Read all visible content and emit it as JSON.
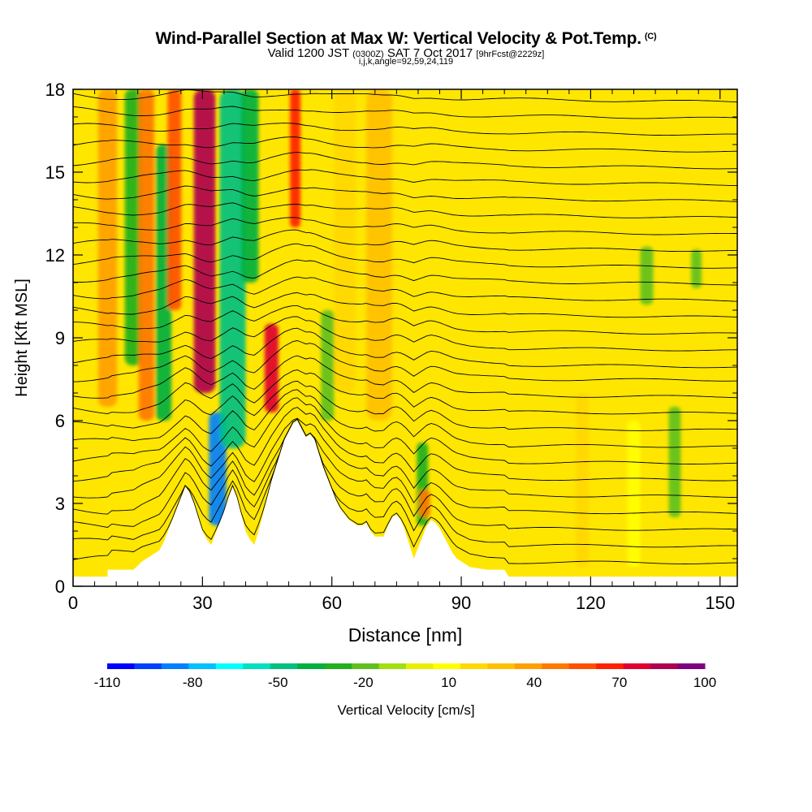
{
  "header": {
    "title": "Wind-Parallel Section at Max W: Vertical Velocity & Pot.Temp.",
    "title_tag": "(C)",
    "valid_prefix": "Valid 1200 JST",
    "valid_utc": "(0300Z)",
    "valid_date": "SAT 7 Oct 2017",
    "forecast": "[9hrFcst@2229z]",
    "indices": "i,j,k,angle=92,59,24,119"
  },
  "chart_data": {
    "type": "heatmap",
    "xlabel": "Distance [nm]",
    "ylabel": "Height [Kft MSL]",
    "xlim": [
      0,
      154
    ],
    "ylim": [
      0,
      18
    ],
    "x_ticks": [
      0,
      30,
      60,
      90,
      120,
      150
    ],
    "x_tick_labels": [
      "0",
      "30",
      "60",
      "90",
      "120",
      "150"
    ],
    "y_ticks": [
      0,
      3,
      6,
      9,
      12,
      15,
      18
    ],
    "y_tick_labels": [
      "0",
      "3",
      "6",
      "9",
      "12",
      "15",
      "18"
    ],
    "colorbar": {
      "label": "Vertical Velocity [cm/s]",
      "tick_labels": [
        "-110",
        "-80",
        "-50",
        "-20",
        "10",
        "40",
        "70",
        "100"
      ],
      "tick_values": [
        -110,
        -80,
        -50,
        -20,
        10,
        40,
        70,
        100
      ],
      "bins": [
        -110,
        -100,
        -90,
        -80,
        -70,
        -60,
        -50,
        -40,
        -30,
        -20,
        -10,
        0,
        10,
        20,
        30,
        40,
        50,
        60,
        70,
        80,
        90,
        100
      ],
      "colors": [
        "#0000ff",
        "#0040ff",
        "#0080ff",
        "#00c0ff",
        "#00ffff",
        "#00e0c0",
        "#00c080",
        "#00b040",
        "#20b020",
        "#60c020",
        "#a0e010",
        "#e8f000",
        "#ffff00",
        "#ffd800",
        "#ffc000",
        "#ffa000",
        "#ff7800",
        "#ff5000",
        "#ff2000",
        "#e00030",
        "#b00050",
        "#800080"
      ]
    },
    "terrain": [
      [
        0,
        0.35
      ],
      [
        8,
        0.35
      ],
      [
        8,
        0.6
      ],
      [
        14,
        0.6
      ],
      [
        16,
        0.9
      ],
      [
        18,
        1.1
      ],
      [
        20,
        1.3
      ],
      [
        21,
        1.6
      ],
      [
        22,
        2.0
      ],
      [
        23,
        2.4
      ],
      [
        24,
        2.8
      ],
      [
        25,
        3.2
      ],
      [
        26,
        3.6
      ],
      [
        27,
        3.4
      ],
      [
        28,
        3.0
      ],
      [
        29,
        2.5
      ],
      [
        30,
        2.0
      ],
      [
        31,
        1.7
      ],
      [
        32,
        1.5
      ],
      [
        33,
        1.9
      ],
      [
        34,
        2.3
      ],
      [
        35,
        2.7
      ],
      [
        36,
        3.2
      ],
      [
        37,
        3.6
      ],
      [
        38,
        3.2
      ],
      [
        39,
        2.6
      ],
      [
        40,
        2.0
      ],
      [
        41,
        1.7
      ],
      [
        42,
        1.5
      ],
      [
        43,
        2.0
      ],
      [
        44,
        2.6
      ],
      [
        45,
        3.2
      ],
      [
        46,
        3.8
      ],
      [
        47,
        4.3
      ],
      [
        48,
        4.8
      ],
      [
        49,
        5.3
      ],
      [
        50,
        5.6
      ],
      [
        51,
        5.9
      ],
      [
        52,
        6.0
      ],
      [
        53,
        5.7
      ],
      [
        54,
        5.4
      ],
      [
        55,
        5.5
      ],
      [
        56,
        5.3
      ],
      [
        57,
        4.8
      ],
      [
        58,
        4.3
      ],
      [
        59,
        3.9
      ],
      [
        60,
        3.5
      ],
      [
        61,
        3.1
      ],
      [
        62,
        2.8
      ],
      [
        63,
        2.6
      ],
      [
        64,
        2.4
      ],
      [
        65,
        2.3
      ],
      [
        66,
        2.2
      ],
      [
        67,
        2.2
      ],
      [
        68,
        2.3
      ],
      [
        69,
        2.0
      ],
      [
        70,
        1.8
      ],
      [
        72,
        1.8
      ],
      [
        73,
        2.2
      ],
      [
        74,
        2.5
      ],
      [
        75,
        2.6
      ],
      [
        76,
        2.4
      ],
      [
        77,
        2.0
      ],
      [
        78,
        1.5
      ],
      [
        79,
        1.0
      ],
      [
        80,
        1.4
      ],
      [
        81,
        1.8
      ],
      [
        82,
        2.2
      ],
      [
        83,
        2.4
      ],
      [
        84,
        2.3
      ],
      [
        85,
        2.1
      ],
      [
        86,
        1.8
      ],
      [
        87,
        1.5
      ],
      [
        88,
        1.2
      ],
      [
        89,
        1.0
      ],
      [
        90,
        0.9
      ],
      [
        92,
        0.7
      ],
      [
        96,
        0.6
      ],
      [
        100,
        0.6
      ],
      [
        101,
        0.35
      ],
      [
        154,
        0.35
      ]
    ],
    "plumes": [
      {
        "x": 8,
        "w": 2.2,
        "z0": 6.5,
        "z1": 18,
        "w_cms": 40
      },
      {
        "x": 14,
        "w": 2.0,
        "z0": 8,
        "z1": 18,
        "w_cms": -30
      },
      {
        "x": 17,
        "w": 1.8,
        "z0": 6,
        "z1": 18,
        "w_cms": 50
      },
      {
        "x": 21,
        "w": 1.8,
        "z0": 6,
        "z1": 16,
        "w_cms": -40
      },
      {
        "x": 23.5,
        "w": 1.6,
        "z0": 10,
        "z1": 18,
        "w_cms": 60
      },
      {
        "x": 30.5,
        "w": 2.5,
        "z0": 7,
        "z1": 18,
        "w_cms": 90
      },
      {
        "x": 33.5,
        "w": 2.0,
        "z0": 2.2,
        "z1": 6.3,
        "w_cms": -90
      },
      {
        "x": 37,
        "w": 3.0,
        "z0": 5,
        "z1": 18,
        "w_cms": -50
      },
      {
        "x": 41,
        "w": 2.0,
        "z0": 11,
        "z1": 18,
        "w_cms": -40
      },
      {
        "x": 46,
        "w": 1.6,
        "z0": 6.3,
        "z1": 9.5,
        "w_cms": 80
      },
      {
        "x": 51.5,
        "w": 1.2,
        "z0": 13,
        "z1": 18,
        "w_cms": 70
      },
      {
        "x": 59,
        "w": 1.5,
        "z0": 6,
        "z1": 10,
        "w_cms": -20
      },
      {
        "x": 63,
        "w": 2.5,
        "z0": 7,
        "z1": 18,
        "w_cms": 20
      },
      {
        "x": 71,
        "w": 3.0,
        "z0": 6,
        "z1": 18,
        "w_cms": 30
      },
      {
        "x": 81,
        "w": 1.3,
        "z0": 2.2,
        "z1": 5.2,
        "w_cms": -25
      },
      {
        "x": 81.5,
        "w": 1.3,
        "z0": 2.5,
        "z1": 3.5,
        "w_cms": 50
      },
      {
        "x": 118,
        "w": 1.5,
        "z0": 0.7,
        "z1": 7,
        "w_cms": 20
      },
      {
        "x": 130,
        "w": 1.5,
        "z0": 0.7,
        "z1": 6,
        "w_cms": 15
      },
      {
        "x": 133,
        "w": 1.5,
        "z0": 10.2,
        "z1": 12.3,
        "w_cms": -20
      },
      {
        "x": 139.5,
        "w": 1.4,
        "z0": 2.5,
        "z1": 6.5,
        "w_cms": -20
      },
      {
        "x": 144.5,
        "w": 1.2,
        "z0": 10.8,
        "z1": 12.2,
        "w_cms": -20
      }
    ],
    "isentrope_levels": [
      1.0,
      1.6,
      2.2,
      2.8,
      3.4,
      4.0,
      4.6,
      5.2,
      5.8,
      6.4,
      7.0,
      7.6,
      8.2,
      8.8,
      9.4,
      10.0,
      10.6,
      11.2,
      11.8,
      12.4,
      13.0,
      13.6,
      14.2,
      14.8,
      15.4,
      16.0,
      16.6,
      17.2,
      17.8
    ]
  }
}
